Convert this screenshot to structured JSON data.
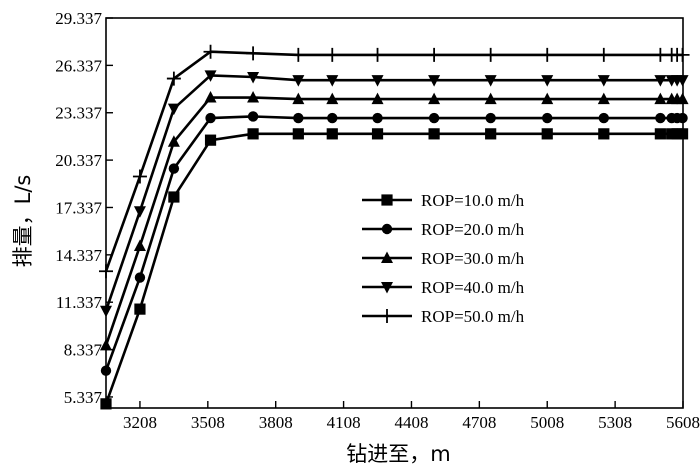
{
  "chart_data": {
    "type": "line",
    "title": "",
    "xlabel": "钻进至，m",
    "ylabel": "排量，L/s",
    "xlim": [
      3058,
      5608
    ],
    "ylim": [
      4.637,
      29.337
    ],
    "xticks": [
      3208,
      3508,
      3808,
      4108,
      4408,
      4708,
      5008,
      5308,
      5608
    ],
    "yticks": [
      5.337,
      8.337,
      11.337,
      14.337,
      17.337,
      20.337,
      23.337,
      26.337,
      29.337
    ],
    "ytick_labels": [
      "5.337",
      "8.337",
      "11.337",
      "14.337",
      "17.337",
      "20.337",
      "23.337",
      "26.337",
      "29.337"
    ],
    "xtick_labels": [
      "3208",
      "3508",
      "3808",
      "4108",
      "4408",
      "4708",
      "5008",
      "5308",
      "5608"
    ],
    "legend_position": "center-right",
    "grid": false,
    "x": [
      3058,
      3208,
      3358,
      3520,
      3708,
      3908,
      4058,
      4258,
      4508,
      4758,
      5008,
      5258,
      5508,
      5558,
      5582,
      5606
    ],
    "series": [
      {
        "name": "ROP=10.0 m/h",
        "marker": "square",
        "values": [
          4.9,
          10.9,
          18.0,
          21.6,
          22.0,
          22.0,
          22.0,
          22.0,
          22.0,
          22.0,
          22.0,
          22.0,
          22.0,
          22.0,
          22.0,
          22.0
        ]
      },
      {
        "name": "ROP=20.0 m/h",
        "marker": "circle",
        "values": [
          7.0,
          12.9,
          19.8,
          23.0,
          23.1,
          23.0,
          23.0,
          23.0,
          23.0,
          23.0,
          23.0,
          23.0,
          23.0,
          23.0,
          23.0,
          23.0
        ]
      },
      {
        "name": "ROP=30.0 m/h",
        "marker": "triangle-up",
        "values": [
          8.6,
          14.9,
          21.5,
          24.3,
          24.3,
          24.2,
          24.2,
          24.2,
          24.2,
          24.2,
          24.2,
          24.2,
          24.2,
          24.2,
          24.2,
          24.2
        ]
      },
      {
        "name": "ROP=40.0 m/h",
        "marker": "triangle-down",
        "values": [
          10.8,
          17.1,
          23.6,
          25.7,
          25.6,
          25.4,
          25.4,
          25.4,
          25.4,
          25.4,
          25.4,
          25.4,
          25.4,
          25.4,
          25.4,
          25.4
        ]
      },
      {
        "name": "ROP=50.0 m/h",
        "marker": "plus",
        "values": [
          13.3,
          19.3,
          25.5,
          27.2,
          27.1,
          27.0,
          27.0,
          27.0,
          27.0,
          27.0,
          27.0,
          27.0,
          27.0,
          27.0,
          27.0,
          27.0
        ]
      }
    ]
  }
}
